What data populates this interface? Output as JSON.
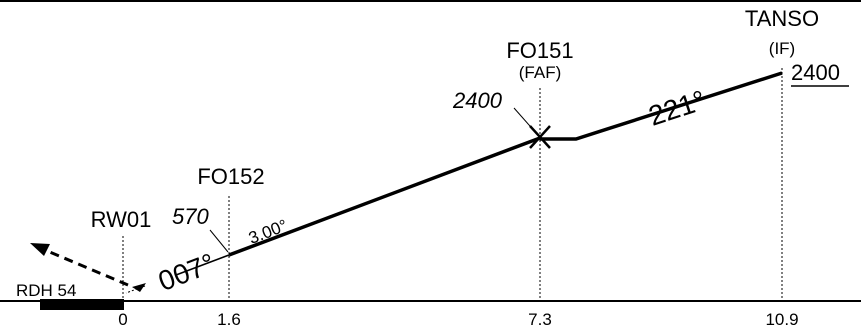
{
  "fixes": {
    "tanso": {
      "name": "TANSO",
      "role": "(IF)",
      "altitude": "2400"
    },
    "fo151": {
      "name": "FO151",
      "role": "(FAF)",
      "altitude": "2400"
    },
    "fo152": {
      "name": "FO152",
      "altitude": "570"
    },
    "rw01": {
      "name": "RW01",
      "rdh": "RDH 54"
    }
  },
  "segments": {
    "intermediate_course": "221°",
    "final_course": "007°",
    "glide_path": "3.00°"
  },
  "distances": [
    "0",
    "1.6",
    "7.3",
    "10.9"
  ]
}
